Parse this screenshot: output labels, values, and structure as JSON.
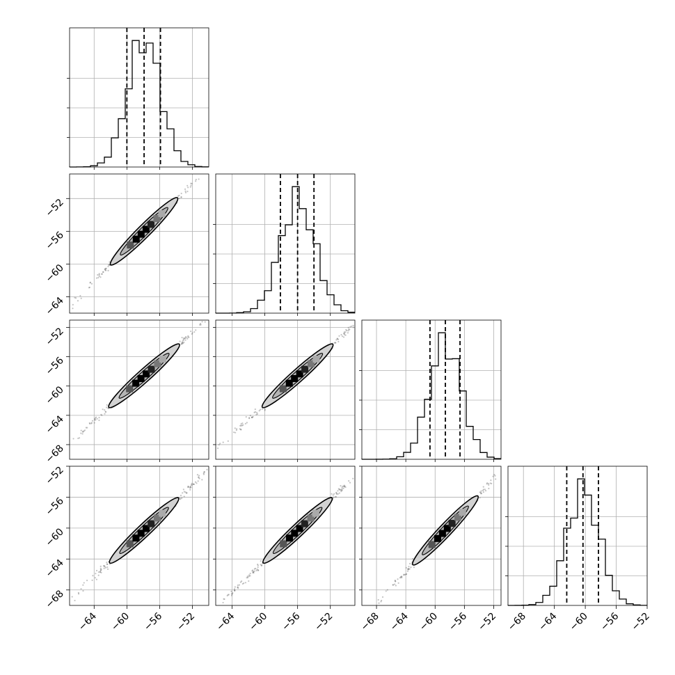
{
  "chart_data": {
    "type": "corner",
    "title": "",
    "params": [
      {
        "range": [
          -67,
          -50
        ],
        "ticks": [
          -64,
          -60,
          -56,
          -52
        ],
        "mean": -57.9,
        "sigma": 2.0,
        "quantiles": [
          -60.0,
          -57.9,
          -55.9
        ]
      },
      {
        "range": [
          -66,
          -49
        ],
        "ticks": [
          -64,
          -60,
          -56,
          -52
        ],
        "mean": -56.0,
        "sigma": 2.1,
        "quantiles": [
          -58.1,
          -56.0,
          -54.0
        ]
      },
      {
        "range": [
          -70,
          -51
        ],
        "ticks": [
          -68,
          -64,
          -60,
          -56,
          -52
        ],
        "mean": -58.6,
        "sigma": 2.2,
        "quantiles": [
          -60.7,
          -58.6,
          -56.6
        ]
      },
      {
        "range": [
          -70,
          -52
        ],
        "ticks": [
          -68,
          -64,
          -60,
          -56,
          -52
        ],
        "mean": -60.3,
        "sigma": 2.1,
        "quantiles": [
          -62.4,
          -60.3,
          -58.3
        ]
      }
    ],
    "grid": true,
    "quantile_line_style": "dashed"
  }
}
